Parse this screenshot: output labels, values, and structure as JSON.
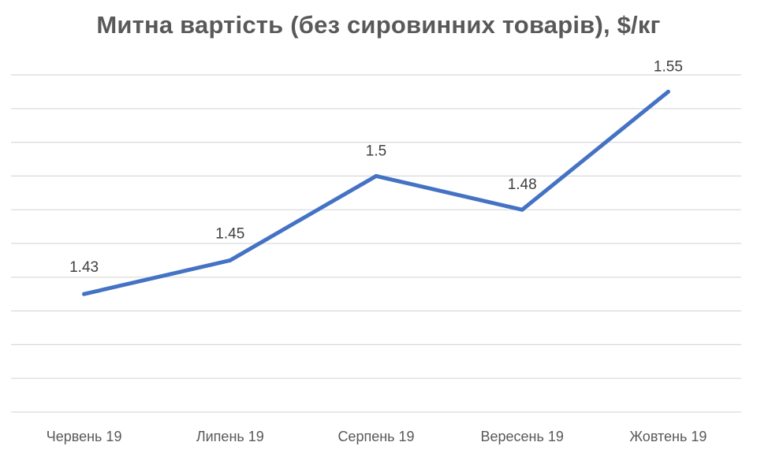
{
  "chart_data": {
    "type": "line",
    "title": "Митна вартість (без сировинних товарів), $/кг",
    "categories": [
      "Червень 19",
      "Липень 19",
      "Серпень 19",
      "Вересень 19",
      "Жовтень 19"
    ],
    "series": [
      {
        "values": [
          1.43,
          1.45,
          1.5,
          1.48,
          1.55
        ],
        "color": "#4472c4"
      }
    ],
    "data_labels": [
      "1.43",
      "1.45",
      "1.5",
      "1.48",
      "1.55"
    ],
    "xlabel": "",
    "ylabel": "",
    "ylim": [
      1.36,
      1.56
    ],
    "grid": true,
    "legend": "none"
  }
}
